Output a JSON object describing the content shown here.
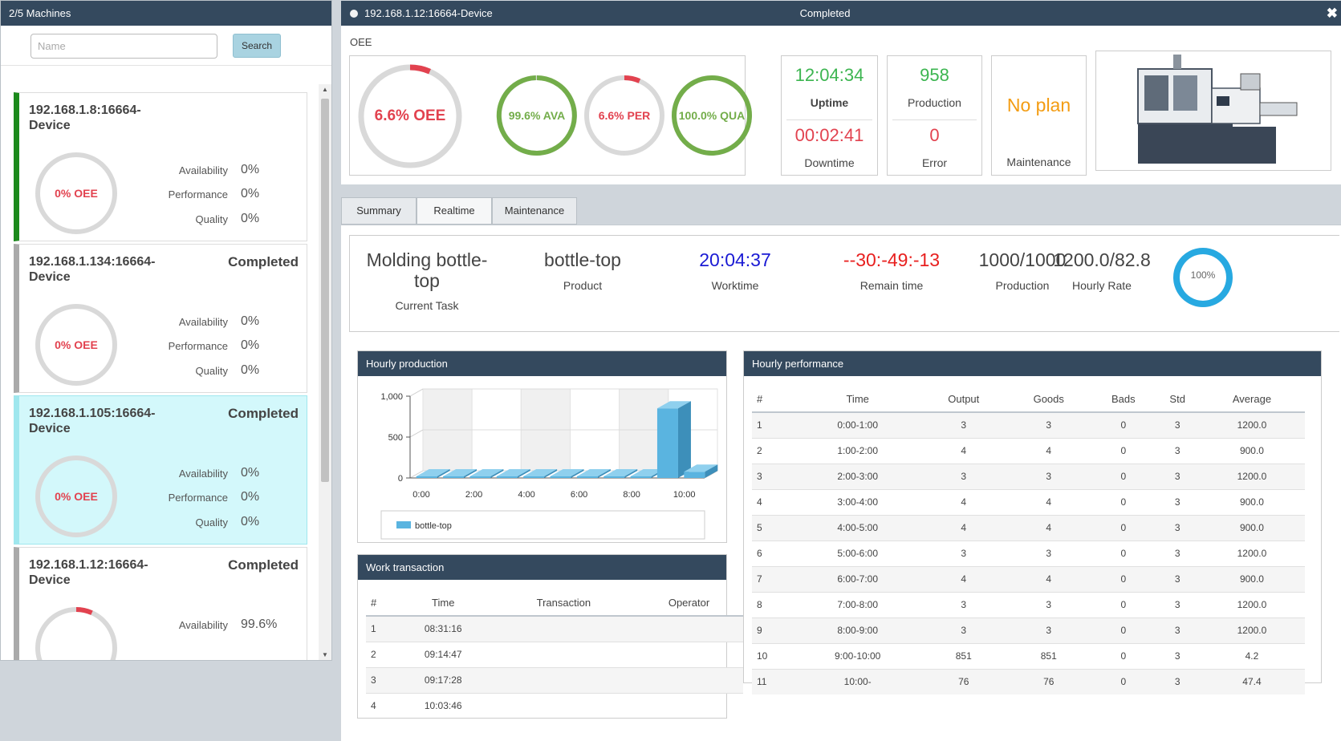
{
  "left": {
    "header": "2/5 Machines",
    "search_placeholder": "Name",
    "search_button": "Search",
    "machines": [
      {
        "name": "192.168.1.8:16664-Device",
        "status": "",
        "oee": "0% OEE",
        "oee_value": 0,
        "availability_label": "Availability",
        "availability": "0%",
        "performance_label": "Performance",
        "performance": "0%",
        "quality_label": "Quality",
        "quality": "0%"
      },
      {
        "name": "192.168.1.134:16664-Device",
        "status": "Completed",
        "oee": "0% OEE",
        "oee_value": 0,
        "availability_label": "Availability",
        "availability": "0%",
        "performance_label": "Performance",
        "performance": "0%",
        "quality_label": "Quality",
        "quality": "0%"
      },
      {
        "name": "192.168.1.105:16664-Device",
        "status": "Completed",
        "oee": "0% OEE",
        "oee_value": 0,
        "availability_label": "Availability",
        "availability": "0%",
        "performance_label": "Performance",
        "performance": "0%",
        "quality_label": "Quality",
        "quality": "0%"
      },
      {
        "name": "192.168.1.12:16664-Device",
        "status": "Completed",
        "oee_value": 6.6,
        "availability_label": "Availability",
        "availability": "99.6%"
      }
    ]
  },
  "device": {
    "title": "192.168.1.12:16664-Device",
    "status": "Completed",
    "close_icon": "close-icon",
    "oee_label": "OEE",
    "gauges": {
      "oee": {
        "label": "6.6% OEE",
        "value": 6.6
      },
      "ava": {
        "label": "99.6% AVA",
        "value": 99.6
      },
      "per": {
        "label": "6.6% PER",
        "value": 6.6
      },
      "qua": {
        "label": "100.0% QUA",
        "value": 100
      }
    },
    "uptime": "12:04:34",
    "uptime_label": "Uptime",
    "downtime": "00:02:41",
    "downtime_label": "Downtime",
    "production": "958",
    "production_label": "Production",
    "error": "0",
    "error_label": "Error",
    "maintenance_value": "No plan",
    "maintenance_label": "Maintenance",
    "image_icon": "injection-molding-machine-image"
  },
  "tabs": [
    "Summary",
    "Realtime",
    "Maintenance"
  ],
  "task": {
    "current_task": "Molding bottle-top",
    "current_task_label": "Current Task",
    "product": "bottle-top",
    "product_label": "Product",
    "worktime": "20:04:37",
    "worktime_label": "Worktime",
    "remain_time": "--30:-49:-13",
    "remain_label": "Remain time",
    "production": "1000/1000",
    "production_label": "Production",
    "hourly_rate": "1200.0/82.8",
    "hourly_rate_label": "Hourly Rate",
    "progress": "100%",
    "progress_value": 100
  },
  "hourly_production_title": "Hourly production",
  "work_transaction_title": "Work transaction",
  "hourly_performance_title": "Hourly performance",
  "colors": {
    "header": "#34495e",
    "bar": "#5ab4e0",
    "red": "#e2424f",
    "green": "#73ad4a",
    "orange": "#f39c12"
  },
  "chart_data": {
    "type": "bar",
    "categories": [
      "0:00",
      "1:00",
      "2:00",
      "3:00",
      "4:00",
      "5:00",
      "6:00",
      "7:00",
      "8:00",
      "9:00",
      "10:00"
    ],
    "x_tick_labels": [
      "0:00",
      "2:00",
      "4:00",
      "6:00",
      "8:00",
      "10:00"
    ],
    "series": [
      {
        "name": "bottle-top",
        "values": [
          3,
          4,
          3,
          4,
          4,
          3,
          4,
          3,
          3,
          851,
          76
        ]
      }
    ],
    "ylim": [
      0,
      1000
    ],
    "y_ticks": [
      "0",
      "500",
      "1,000"
    ],
    "legend": "bottom",
    "style": "3d-bar"
  },
  "transactions": {
    "columns": [
      "#",
      "Time",
      "Transaction",
      "Operator"
    ],
    "rows": [
      [
        "1",
        "08:31:16",
        "",
        ""
      ],
      [
        "2",
        "09:14:47",
        "",
        ""
      ],
      [
        "3",
        "09:17:28",
        "",
        ""
      ],
      [
        "4",
        "10:03:46",
        "",
        ""
      ]
    ]
  },
  "performance": {
    "columns": [
      "#",
      "Time",
      "Output",
      "Goods",
      "Bads",
      "Std",
      "Average"
    ],
    "rows": [
      [
        "1",
        "0:00-1:00",
        "3",
        "3",
        "0",
        "3",
        "1200.0"
      ],
      [
        "2",
        "1:00-2:00",
        "4",
        "4",
        "0",
        "3",
        "900.0"
      ],
      [
        "3",
        "2:00-3:00",
        "3",
        "3",
        "0",
        "3",
        "1200.0"
      ],
      [
        "4",
        "3:00-4:00",
        "4",
        "4",
        "0",
        "3",
        "900.0"
      ],
      [
        "5",
        "4:00-5:00",
        "4",
        "4",
        "0",
        "3",
        "900.0"
      ],
      [
        "6",
        "5:00-6:00",
        "3",
        "3",
        "0",
        "3",
        "1200.0"
      ],
      [
        "7",
        "6:00-7:00",
        "4",
        "4",
        "0",
        "3",
        "900.0"
      ],
      [
        "8",
        "7:00-8:00",
        "3",
        "3",
        "0",
        "3",
        "1200.0"
      ],
      [
        "9",
        "8:00-9:00",
        "3",
        "3",
        "0",
        "3",
        "1200.0"
      ],
      [
        "10",
        "9:00-10:00",
        "851",
        "851",
        "0",
        "3",
        "4.2"
      ],
      [
        "11",
        "10:00-",
        "76",
        "76",
        "0",
        "3",
        "47.4"
      ]
    ]
  }
}
